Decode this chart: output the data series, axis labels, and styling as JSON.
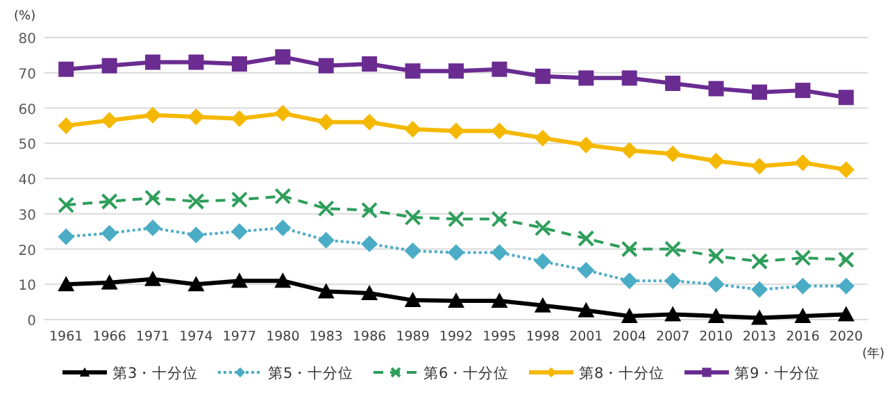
{
  "chart_data": {
    "type": "line",
    "ylabel": "(%)",
    "xlabel": "(年)",
    "categories": [
      "1961",
      "1966",
      "1971",
      "1974",
      "1977",
      "1980",
      "1983",
      "1986",
      "1989",
      "1992",
      "1995",
      "1998",
      "2001",
      "2004",
      "2007",
      "2010",
      "2013",
      "2016",
      "2020"
    ],
    "series": [
      {
        "name": "第3・十分位",
        "color": "#000000",
        "marker": "triangle",
        "line_style": "solid",
        "values": [
          10,
          10.5,
          11.5,
          10,
          11,
          11,
          8,
          7.5,
          5.5,
          5.3,
          5.3,
          4,
          2.6,
          1,
          1.5,
          1,
          0.5,
          1,
          1.5
        ]
      },
      {
        "name": "第5・十分位",
        "color": "#4bacc6",
        "marker": "diamond",
        "line_style": "dotted",
        "values": [
          23.5,
          24.5,
          26,
          24,
          25,
          26,
          22.5,
          21.5,
          19.5,
          19,
          19,
          16.5,
          14,
          11,
          11,
          10,
          8.5,
          9.5,
          9.5
        ]
      },
      {
        "name": "第6・十分位",
        "color": "#2e9e5b",
        "marker": "cross",
        "line_style": "dashed",
        "values": [
          32.5,
          33.5,
          34.5,
          33.5,
          34,
          35,
          31.5,
          31,
          29,
          28.5,
          28.5,
          26,
          23,
          20,
          20,
          18,
          16.5,
          17.5,
          17
        ]
      },
      {
        "name": "第8・十分位",
        "color": "#f5b800",
        "marker": "diamond",
        "line_style": "solid",
        "values": [
          55,
          56.5,
          58,
          57.5,
          57,
          58.5,
          56,
          56,
          54,
          53.5,
          53.5,
          51.5,
          49.5,
          48,
          47,
          45,
          43.5,
          44.5,
          42.5
        ]
      },
      {
        "name": "第9・十分位",
        "color": "#6a2c91",
        "marker": "square",
        "line_style": "solid",
        "values": [
          71,
          72,
          73,
          73,
          72.5,
          74.5,
          72,
          72.5,
          70.5,
          70.5,
          71,
          69,
          68.5,
          68.5,
          67,
          65.5,
          64.5,
          65,
          63
        ]
      }
    ],
    "ylim": [
      0,
      80
    ],
    "yticks": [
      0,
      10,
      20,
      30,
      40,
      50,
      60,
      70,
      80
    ],
    "grid": "y",
    "legend": "bottom"
  }
}
